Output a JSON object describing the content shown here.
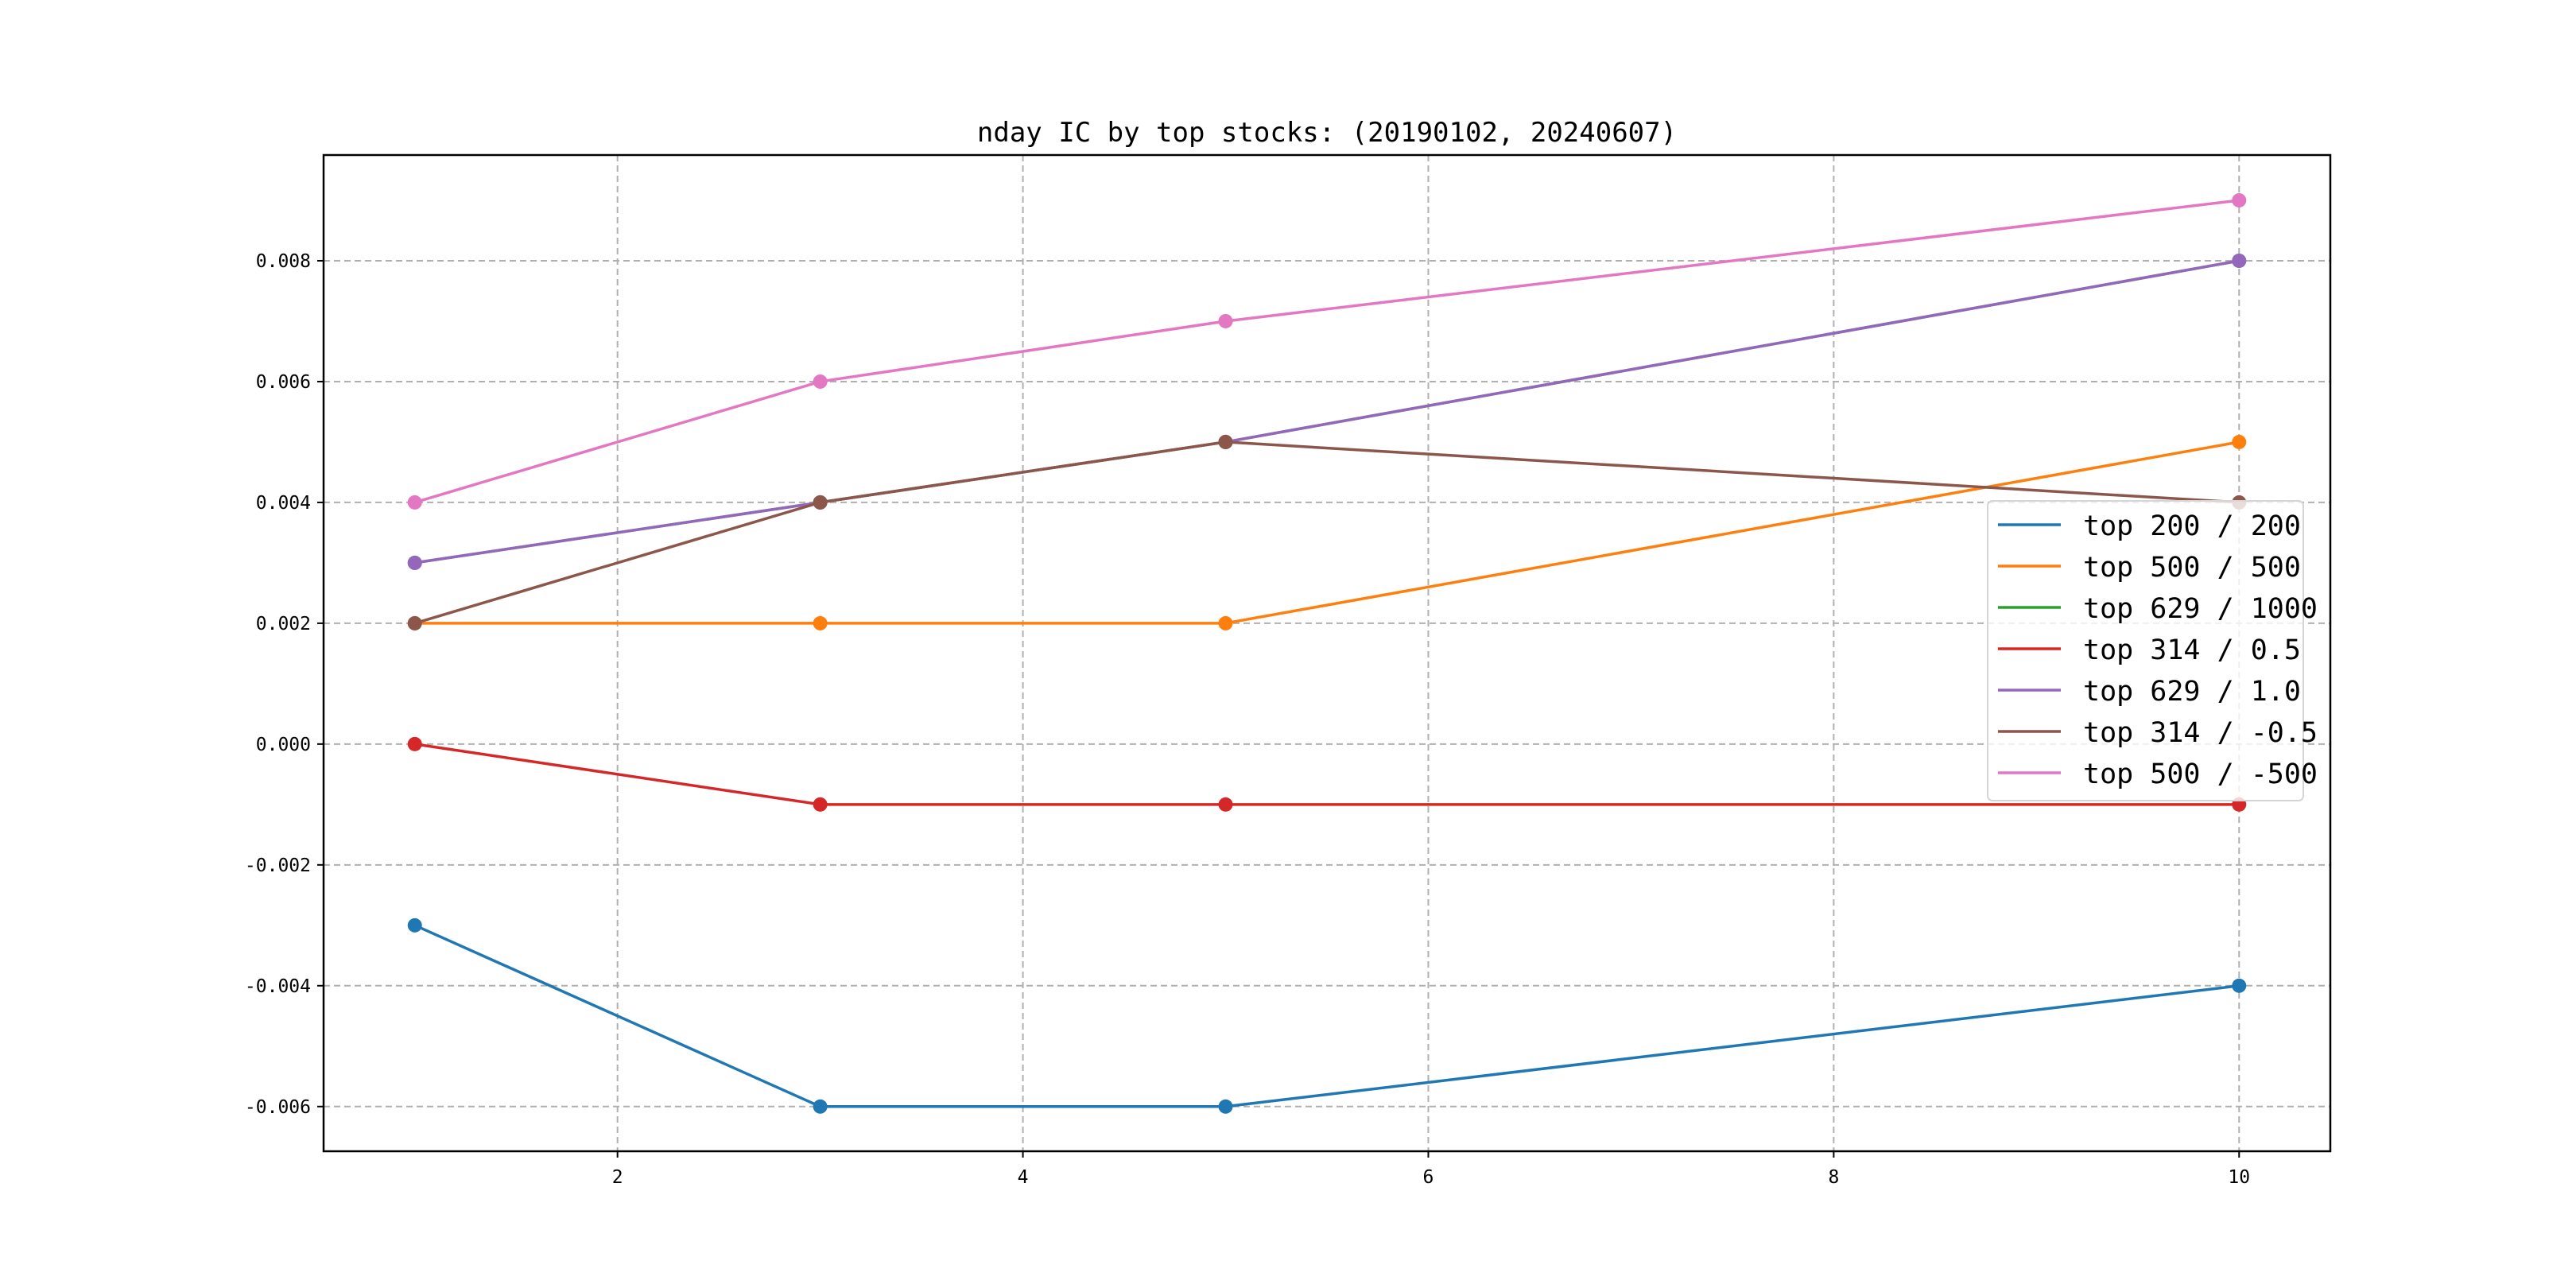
{
  "chart_data": {
    "type": "line",
    "title": "nday IC by top stocks: (20190102, 20240607)",
    "xlabel": "",
    "ylabel": "",
    "x": [
      1,
      3,
      5,
      10
    ],
    "xlim": [
      0.55,
      10.45
    ],
    "ylim": [
      -0.00674,
      0.00975
    ],
    "xticks": [
      2,
      4,
      6,
      8,
      10
    ],
    "xtick_labels": [
      "2",
      "4",
      "6",
      "8",
      "10"
    ],
    "yticks": [
      -0.006,
      -0.004,
      -0.002,
      0.0,
      0.002,
      0.004,
      0.006,
      0.008
    ],
    "ytick_labels": [
      "-0.006",
      "-0.004",
      "-0.002",
      "0.000",
      "0.002",
      "0.004",
      "0.006",
      "0.008"
    ],
    "grid": true,
    "legend_position": "center-right",
    "series": [
      {
        "name": "top 200 / 200",
        "color": "#1f77b4",
        "values": [
          -0.003,
          -0.006,
          -0.006,
          -0.004
        ]
      },
      {
        "name": "top 500 / 500",
        "color": "#ff7f0e",
        "values": [
          0.002,
          0.002,
          0.002,
          0.005
        ]
      },
      {
        "name": "top 629 / 1000",
        "color": "#2ca02c",
        "values": [
          0.003,
          0.004,
          0.005,
          0.008
        ]
      },
      {
        "name": "top 314 / 0.5",
        "color": "#d62728",
        "values": [
          0.0,
          -0.001,
          -0.001,
          -0.001
        ]
      },
      {
        "name": "top 629 / 1.0",
        "color": "#9467bd",
        "values": [
          0.003,
          0.004,
          0.005,
          0.008
        ]
      },
      {
        "name": "top 314 / -0.5",
        "color": "#8c564b",
        "values": [
          0.002,
          0.004,
          0.005,
          0.004
        ]
      },
      {
        "name": "top 500 / -500",
        "color": "#e377c2",
        "values": [
          0.004,
          0.006,
          0.007,
          0.009
        ]
      }
    ]
  }
}
